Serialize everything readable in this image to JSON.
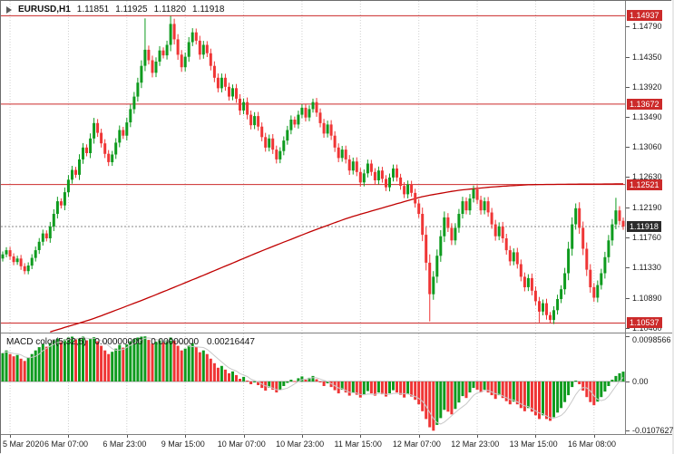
{
  "header": {
    "symbol": "EURUSD,H1",
    "open": "1.11851",
    "high": "1.11925",
    "low": "1.11820",
    "close": "1.11918"
  },
  "macd_header": {
    "label": "MACD color(5,32,5)",
    "value1": "0.00000000",
    "value2": "0.00000000",
    "value3": "0.00216447"
  },
  "colors": {
    "up": "#0e9b1e",
    "down": "#ef3535",
    "ma": "#c00000",
    "level": "#cc2a2a",
    "grid": "#cfcfcf",
    "signal": "#c9c9c9",
    "current_badge": "#2b2b2b",
    "current_line": "#888888"
  },
  "chart_data": [
    {
      "type": "candlestick",
      "symbol": "EURUSD",
      "timeframe": "H1",
      "ylim": [
        1.104,
        1.1515
      ],
      "closes": [
        1.1152,
        1.1158,
        1.1149,
        1.1141,
        1.1146,
        1.1135,
        1.1128,
        1.1136,
        1.1147,
        1.1158,
        1.117,
        1.1182,
        1.1175,
        1.1192,
        1.121,
        1.1228,
        1.1222,
        1.1241,
        1.1259,
        1.1273,
        1.1266,
        1.1288,
        1.1305,
        1.1297,
        1.1318,
        1.134,
        1.1326,
        1.1311,
        1.1296,
        1.1284,
        1.1295,
        1.1312,
        1.133,
        1.1322,
        1.1341,
        1.136,
        1.1378,
        1.1398,
        1.1422,
        1.1445,
        1.143,
        1.1412,
        1.1428,
        1.1444,
        1.1437,
        1.1452,
        1.1482,
        1.146,
        1.1438,
        1.142,
        1.1435,
        1.1456,
        1.147,
        1.1458,
        1.1438,
        1.1452,
        1.144,
        1.1422,
        1.1405,
        1.139,
        1.1405,
        1.1392,
        1.1378,
        1.139,
        1.1375,
        1.1358,
        1.137,
        1.1352,
        1.1337,
        1.135,
        1.1335,
        1.132,
        1.1305,
        1.1318,
        1.1302,
        1.1288,
        1.13,
        1.1315,
        1.133,
        1.1345,
        1.1338,
        1.1352,
        1.1362,
        1.1348,
        1.136,
        1.137,
        1.1355,
        1.134,
        1.1325,
        1.1338,
        1.1322,
        1.1305,
        1.129,
        1.1302,
        1.1288,
        1.1272,
        1.1285,
        1.127,
        1.1255,
        1.1268,
        1.1282,
        1.127,
        1.1258,
        1.1272,
        1.126,
        1.1248,
        1.1262,
        1.1275,
        1.1262,
        1.125,
        1.1238,
        1.1252,
        1.124,
        1.1225,
        1.121,
        1.118,
        1.114,
        1.1095,
        1.112,
        1.115,
        1.1178,
        1.1205,
        1.119,
        1.1172,
        1.119,
        1.121,
        1.1228,
        1.1215,
        1.1232,
        1.1245,
        1.123,
        1.1215,
        1.1228,
        1.1212,
        1.1195,
        1.1178,
        1.1192,
        1.1175,
        1.1158,
        1.1142,
        1.1155,
        1.1138,
        1.112,
        1.1105,
        1.1118,
        1.11,
        1.1085,
        1.107,
        1.1082,
        1.1065,
        1.1058,
        1.1072,
        1.1088,
        1.1102,
        1.1125,
        1.116,
        1.1195,
        1.1218,
        1.119,
        1.116,
        1.113,
        1.1105,
        1.109,
        1.1108,
        1.1125,
        1.1148,
        1.1172,
        1.1195,
        1.1215,
        1.12,
        1.11918
      ],
      "spikes": {
        "39": {
          "h": 1.149
        },
        "46": {
          "h": 1.14935
        },
        "52": {
          "h": 1.1476
        },
        "117": {
          "l": 1.1056
        },
        "147": {
          "l": 1.10545
        },
        "150": {
          "l": 1.1054
        },
        "157": {
          "h": 1.1225
        },
        "168": {
          "h": 1.1233
        }
      },
      "levels": [
        {
          "value": 1.14937,
          "label": "1.14937"
        },
        {
          "value": 1.13672,
          "label": "1.13672"
        },
        {
          "value": 1.12521,
          "label": "1.12521"
        },
        {
          "value": 1.10537,
          "label": "1.10537"
        }
      ],
      "current": {
        "value": 1.11918,
        "label": "1.11918"
      },
      "price_axis_ticks": [
        "1.14790",
        "1.14350",
        "1.13920",
        "1.13490",
        "1.13060",
        "1.12630",
        "1.12190",
        "1.11760",
        "1.11330",
        "1.10890",
        "1.10460"
      ],
      "time_ticks": [
        {
          "index": 2,
          "label": "5 Mar 2020"
        },
        {
          "index": 18,
          "label": "6 Mar 07:00"
        },
        {
          "index": 34,
          "label": "6 Mar 23:00"
        },
        {
          "index": 50,
          "label": "9 Mar 15:00"
        },
        {
          "index": 66,
          "label": "10 Mar 07:00"
        },
        {
          "index": 82,
          "label": "10 Mar 23:00"
        },
        {
          "index": 98,
          "label": "11 Mar 15:00"
        },
        {
          "index": 114,
          "label": "12 Mar 07:00"
        },
        {
          "index": 130,
          "label": "12 Mar 23:00"
        },
        {
          "index": 146,
          "label": "13 Mar 15:00"
        },
        {
          "index": 162,
          "label": "16 Mar 08:00"
        }
      ],
      "ma_points": [
        [
          13,
          1.1041
        ],
        [
          25,
          1.106
        ],
        [
          40,
          1.109
        ],
        [
          55,
          1.1122
        ],
        [
          70,
          1.1155
        ],
        [
          85,
          1.1186
        ],
        [
          95,
          1.1205
        ],
        [
          105,
          1.122
        ],
        [
          115,
          1.1235
        ],
        [
          125,
          1.1244
        ],
        [
          135,
          1.1249
        ],
        [
          145,
          1.1252
        ],
        [
          170,
          1.1253
        ]
      ]
    },
    {
      "type": "bar",
      "name": "MACD color(5,32,5)",
      "ylim": [
        -0.0115,
        0.0105
      ],
      "values": [
        0.0062,
        0.0068,
        0.006,
        0.0055,
        0.0058,
        0.005,
        0.0045,
        0.0052,
        0.006,
        0.0068,
        0.0075,
        0.0082,
        0.0076,
        0.0084,
        0.009,
        0.0094,
        0.0088,
        0.0092,
        0.0096,
        0.0098,
        0.0092,
        0.0095,
        0.0098,
        0.009,
        0.0094,
        0.0097,
        0.0088,
        0.0078,
        0.0068,
        0.006,
        0.0065,
        0.0072,
        0.008,
        0.0074,
        0.0081,
        0.0088,
        0.0093,
        0.0096,
        0.0098,
        0.00986,
        0.0091,
        0.0083,
        0.0087,
        0.0092,
        0.0086,
        0.009,
        0.0096,
        0.0089,
        0.0078,
        0.0068,
        0.0072,
        0.0079,
        0.0084,
        0.0076,
        0.0064,
        0.0068,
        0.006,
        0.005,
        0.004,
        0.003,
        0.0034,
        0.0026,
        0.0018,
        0.0022,
        0.0014,
        0.0006,
        0.001,
        0.0002,
        -0.0006,
        -0.0001,
        -0.0008,
        -0.0014,
        -0.002,
        -0.0013,
        -0.0018,
        -0.0024,
        -0.0018,
        -0.001,
        -0.0003,
        0.0004,
        0.0001,
        0.0007,
        0.0011,
        0.0004,
        0.0008,
        0.0012,
        0.0005,
        -0.0002,
        -0.001,
        -0.0004,
        -0.0012,
        -0.0019,
        -0.0026,
        -0.0018,
        -0.0024,
        -0.0031,
        -0.0024,
        -0.0029,
        -0.0035,
        -0.0028,
        -0.0021,
        -0.0026,
        -0.0031,
        -0.0024,
        -0.0028,
        -0.0033,
        -0.0026,
        -0.0019,
        -0.0024,
        -0.0029,
        -0.0035,
        -0.0028,
        -0.0033,
        -0.004,
        -0.005,
        -0.0065,
        -0.0082,
        -0.01,
        -0.0107627,
        -0.0095,
        -0.008,
        -0.0062,
        -0.0066,
        -0.0072,
        -0.006,
        -0.0046,
        -0.0032,
        -0.0036,
        -0.0024,
        -0.0014,
        -0.0018,
        -0.0024,
        -0.0018,
        -0.0024,
        -0.003,
        -0.0038,
        -0.003,
        -0.0036,
        -0.0043,
        -0.005,
        -0.0044,
        -0.005,
        -0.0058,
        -0.0065,
        -0.0058,
        -0.0066,
        -0.0074,
        -0.0082,
        -0.0074,
        -0.0082,
        -0.0086,
        -0.0078,
        -0.0068,
        -0.0058,
        -0.0045,
        -0.003,
        -0.0012,
        0.0002,
        -0.0006,
        -0.002,
        -0.0034,
        -0.0045,
        -0.0052,
        -0.0044,
        -0.0034,
        -0.0022,
        -0.001,
        0.0004,
        0.0012,
        0.0018,
        0.00216447
      ],
      "axis_labels": [
        {
          "value": 0.0098566,
          "label": "0.0098566"
        },
        {
          "value": 0,
          "label": "0.00"
        },
        {
          "value": -0.0107627,
          "label": "-0.0107627"
        }
      ]
    }
  ]
}
